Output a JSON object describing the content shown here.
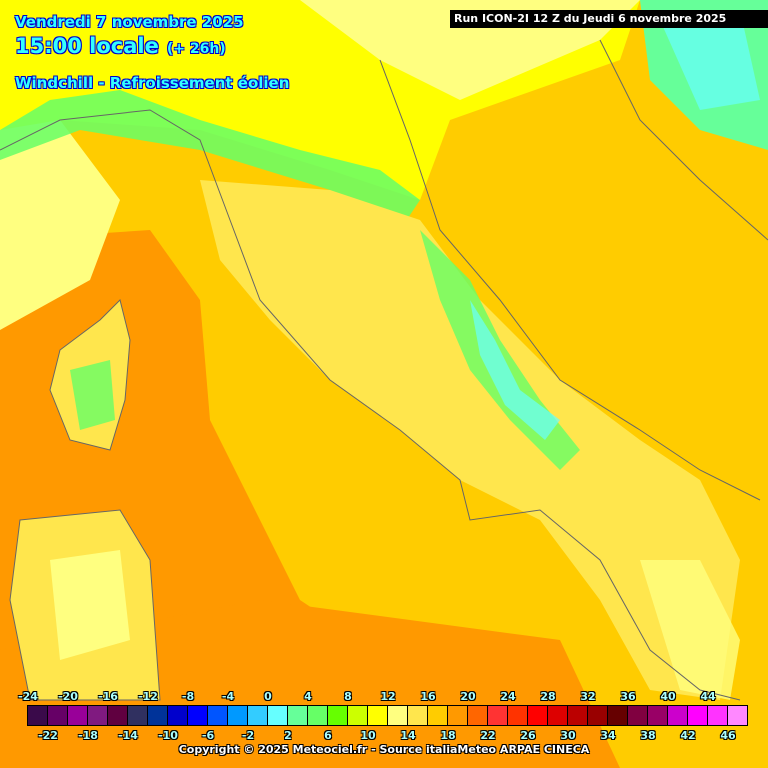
{
  "header": {
    "date": "Vendredi 7 novembre 2025",
    "time": "15:00 locale",
    "offset": "(+ 26h)",
    "parameter": "Windchill - Refroissement éolien",
    "run": "Run ICON-2I 12 Z du Jeudi 6 novembre 2025"
  },
  "legend": {
    "top_labels": [
      "-24",
      "-20",
      "-16",
      "-12",
      "-8",
      "-4",
      "0",
      "4",
      "8",
      "12",
      "16",
      "20",
      "24",
      "28",
      "32",
      "36",
      "40",
      "44"
    ],
    "bottom_labels": [
      "-22",
      "-18",
      "-14",
      "-10",
      "-6",
      "-2",
      "2",
      "6",
      "10",
      "14",
      "18",
      "22",
      "26",
      "30",
      "34",
      "38",
      "42",
      "46"
    ],
    "colors": [
      "#3a0a4a",
      "#660066",
      "#990099",
      "#801a80",
      "#600040",
      "#303060",
      "#003399",
      "#0000cc",
      "#0000ff",
      "#0055ff",
      "#0099ff",
      "#33ccff",
      "#66ffff",
      "#66ff99",
      "#66ff66",
      "#66ff00",
      "#ccff00",
      "#ffff00",
      "#ffff80",
      "#ffe64d",
      "#ffcc00",
      "#ff9900",
      "#ff6600",
      "#ff3333",
      "#ff3300",
      "#ff0000",
      "#dd0000",
      "#bb0000",
      "#990000",
      "#660000",
      "#800040",
      "#990066",
      "#cc00cc",
      "#ff00ff",
      "#ff33ff",
      "#ff88ff"
    ]
  },
  "copyright": "Copyright © 2025 Meteociel.fr - Source italiaMeteo ARPAE CINECA"
}
